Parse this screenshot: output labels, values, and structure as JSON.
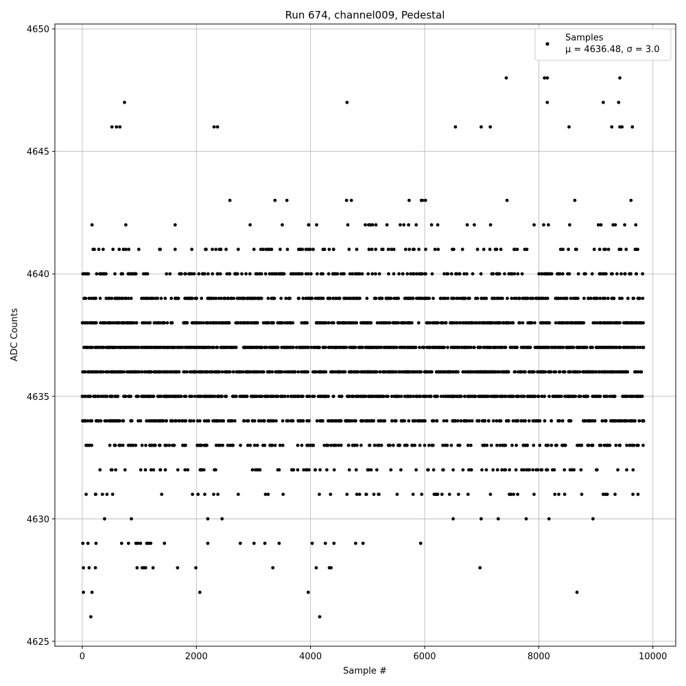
{
  "chart_data": {
    "type": "scatter",
    "title": "Run 674, channel009, Pedestal",
    "xlabel": "Sample #",
    "ylabel": "ADC Counts",
    "xlim": [
      -480,
      10400
    ],
    "ylim": [
      4624.8,
      4650.2
    ],
    "x_ticks": [
      0,
      2000,
      4000,
      6000,
      8000,
      10000
    ],
    "y_ticks": [
      4625,
      4630,
      4635,
      4640,
      4645,
      4650
    ],
    "grid": true,
    "marker_color": "#000000",
    "legend": {
      "placement": "top-right",
      "entries": [
        {
          "label": "Samples",
          "stats": "μ = 4636.48, σ = 3.0"
        }
      ]
    },
    "series": [
      {
        "name": "Samples",
        "n_samples": 9850,
        "mean": 4636.48,
        "sigma": 3.0,
        "x_min": 0,
        "x_max": 9840,
        "points": [
          [
            150,
            4626
          ],
          [
            4160,
            4626
          ],
          [
            20,
            4627
          ],
          [
            170,
            4627
          ],
          [
            2060,
            4627
          ],
          [
            3960,
            4627
          ],
          [
            8670,
            4627
          ],
          [
            20,
            4628
          ],
          [
            120,
            4628
          ],
          [
            230,
            4628
          ],
          [
            960,
            4628
          ],
          [
            1050,
            4628
          ],
          [
            1080,
            4628
          ],
          [
            1110,
            4628
          ],
          [
            1240,
            4628
          ],
          [
            1670,
            4628
          ],
          [
            1990,
            4628
          ],
          [
            3340,
            4628
          ],
          [
            4100,
            4628
          ],
          [
            4330,
            4628
          ],
          [
            4360,
            4628
          ],
          [
            6970,
            4628
          ],
          [
            10,
            4629
          ],
          [
            100,
            4629
          ],
          [
            240,
            4629
          ],
          [
            690,
            4629
          ],
          [
            810,
            4629
          ],
          [
            940,
            4629
          ],
          [
            970,
            4629
          ],
          [
            1020,
            4629
          ],
          [
            1130,
            4629
          ],
          [
            1160,
            4629
          ],
          [
            1200,
            4629
          ],
          [
            1440,
            4629
          ],
          [
            2200,
            4629
          ],
          [
            2770,
            4629
          ],
          [
            3010,
            4629
          ],
          [
            3200,
            4629
          ],
          [
            3450,
            4629
          ],
          [
            4030,
            4629
          ],
          [
            4260,
            4629
          ],
          [
            4410,
            4629
          ],
          [
            4790,
            4629
          ],
          [
            4920,
            4629
          ],
          [
            5930,
            4629
          ],
          [
            390,
            4630
          ],
          [
            860,
            4630
          ],
          [
            2200,
            4630
          ],
          [
            2450,
            4630
          ],
          [
            6500,
            4630
          ],
          [
            6990,
            4630
          ],
          [
            7290,
            4630
          ],
          [
            7780,
            4630
          ],
          [
            8180,
            4630
          ],
          [
            8950,
            4630
          ],
          [
            3520,
            4631
          ],
          [
            4980,
            4631
          ],
          [
            6200,
            4631
          ],
          [
            8350,
            4631
          ],
          [
            9650,
            4631
          ],
          [
            520,
            4632
          ],
          [
            1800,
            4632
          ],
          [
            4800,
            4632
          ],
          [
            6500,
            4632
          ],
          [
            7600,
            4632
          ],
          [
            9540,
            4632
          ],
          [
            6990,
            4646
          ],
          [
            7150,
            4646
          ],
          [
            8530,
            4646
          ],
          [
            9280,
            4646
          ],
          [
            9640,
            4646
          ],
          [
            520,
            4646
          ],
          [
            600,
            4646
          ],
          [
            660,
            4646
          ],
          [
            2310,
            4646
          ],
          [
            2370,
            4646
          ],
          [
            6540,
            4646
          ],
          [
            9420,
            4646
          ],
          [
            9460,
            4646
          ],
          [
            740,
            4647
          ],
          [
            4640,
            4647
          ],
          [
            8150,
            4647
          ],
          [
            9130,
            4647
          ],
          [
            9400,
            4647
          ],
          [
            7430,
            4648
          ],
          [
            8100,
            4648
          ],
          [
            8150,
            4648
          ],
          [
            9420,
            4648
          ]
        ]
      }
    ]
  }
}
